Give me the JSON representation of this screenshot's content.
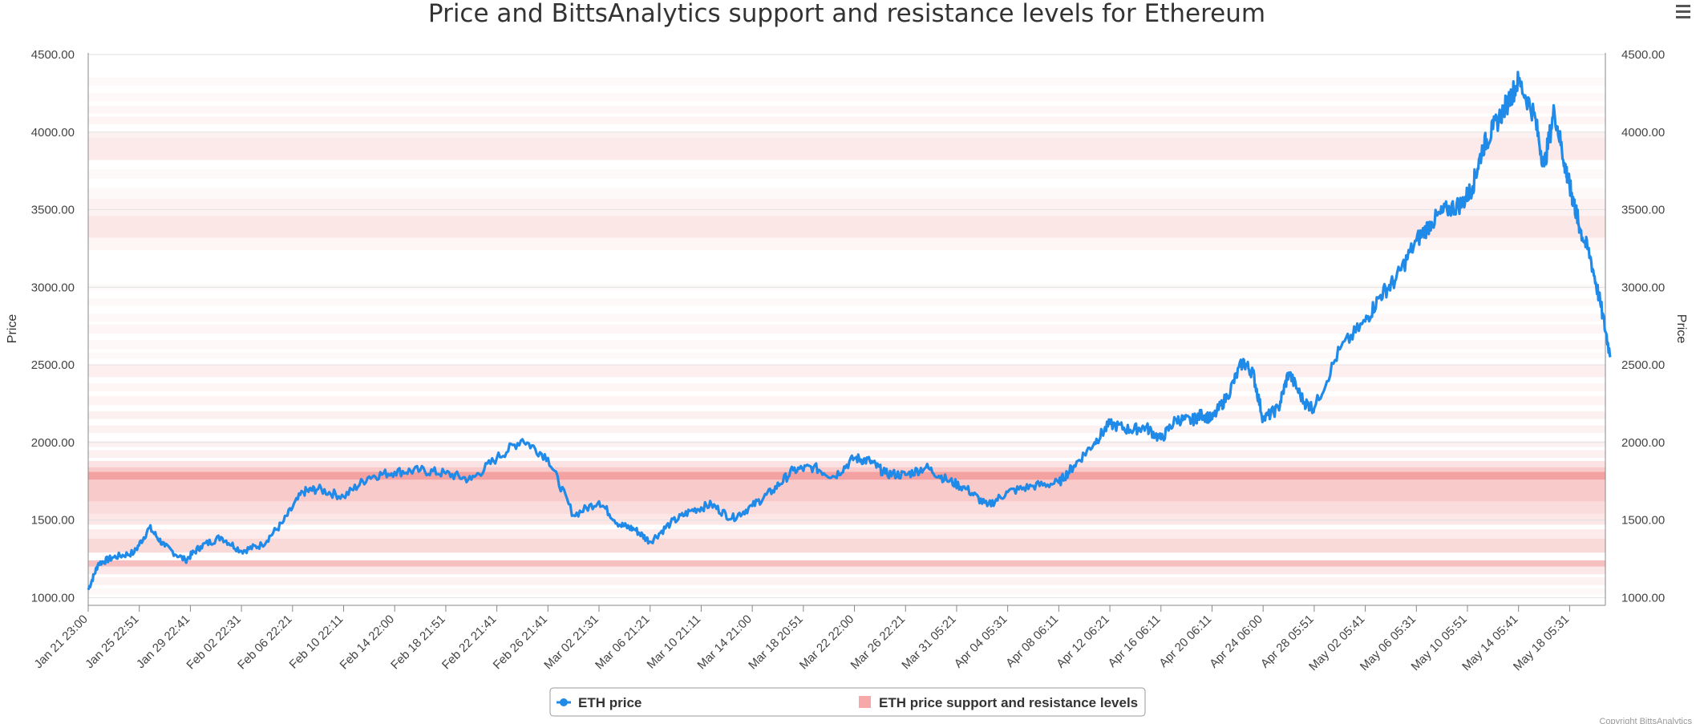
{
  "chart_data": {
    "type": "line",
    "title": "Price and BittsAnalytics support and resistance levels for Ethereum",
    "ylabel": "Price",
    "ylabel_right": "Price",
    "ylim": [
      950,
      4500
    ],
    "yticks": [
      "4500.00",
      "4000.00",
      "3500.00",
      "3000.00",
      "2500.00",
      "2000.00",
      "1500.00",
      "1000.00"
    ],
    "ytick_values": [
      4500,
      4000,
      3500,
      3000,
      2500,
      2000,
      1500,
      1000
    ],
    "xticks": [
      "Jan 21 23:00",
      "Jan 25 22:51",
      "Jan 29 22:41",
      "Feb 02 22:31",
      "Feb 06 22:21",
      "Feb 10 22:11",
      "Feb 14 22:00",
      "Feb 18 21:51",
      "Feb 22 21:41",
      "Feb 26 21:41",
      "Mar 02 21:31",
      "Mar 06 21:21",
      "Mar 10 21:11",
      "Mar 14 21:00",
      "Mar 18 20:51",
      "Mar 22 22:00",
      "Mar 26 22:21",
      "Mar 31 05:21",
      "Apr 04 05:31",
      "Apr 08 06:11",
      "Apr 12 06:21",
      "Apr 16 06:11",
      "Apr 20 06:11",
      "Apr 24 06:00",
      "Apr 28 05:51",
      "May 02 05:41",
      "May 06 05:31",
      "May 10 05:51",
      "May 14 05:41",
      "May 18 05:31"
    ],
    "grid": true,
    "legend_position": "bottom",
    "series": [
      {
        "name": "ETH price",
        "color": "#1f8ae8",
        "x_index": [
          0,
          0.2,
          0.5,
          0.9,
          1.2,
          1.5,
          1.9,
          2.2,
          2.6,
          3.0,
          3.4,
          3.8,
          4.2,
          4.5,
          5.0,
          5.5,
          6.0,
          6.5,
          7.0,
          7.5,
          8.0,
          8.5,
          9.0,
          9.5,
          10.0,
          10.4,
          10.7,
          11.0,
          11.4,
          11.8,
          12.2,
          12.6,
          13.0,
          13.4,
          13.8,
          14.2,
          14.6,
          15.0,
          15.3,
          15.6,
          16.0,
          16.4,
          16.8,
          17.2,
          17.6,
          18.0,
          18.5,
          19.0,
          19.3,
          19.7,
          20.0,
          20.4,
          20.7,
          21.0,
          21.3,
          21.6,
          21.8,
          22.0,
          22.3,
          22.6,
          22.8,
          23.0,
          23.3,
          23.5,
          23.8,
          24.0,
          24.5,
          25.0,
          25.3,
          25.6,
          26.0,
          26.3,
          26.6,
          26.9,
          27.1,
          27.3,
          27.5,
          27.8,
          28.0,
          28.3,
          28.5,
          28.7,
          28.9,
          29.0,
          29.1,
          29.2,
          29.4,
          29.6,
          29.8
        ],
        "values": [
          1050,
          1220,
          1260,
          1290,
          1450,
          1330,
          1240,
          1330,
          1390,
          1300,
          1340,
          1480,
          1680,
          1700,
          1650,
          1780,
          1810,
          1820,
          1800,
          1760,
          1900,
          2020,
          1900,
          1530,
          1620,
          1470,
          1440,
          1360,
          1480,
          1560,
          1600,
          1510,
          1590,
          1690,
          1820,
          1840,
          1780,
          1900,
          1880,
          1800,
          1790,
          1840,
          1760,
          1700,
          1590,
          1680,
          1720,
          1740,
          1850,
          2000,
          2120,
          2080,
          2100,
          2020,
          2150,
          2140,
          2180,
          2150,
          2300,
          2520,
          2450,
          2150,
          2220,
          2450,
          2260,
          2220,
          2600,
          2780,
          2950,
          3050,
          3300,
          3420,
          3500,
          3540,
          3650,
          3900,
          4020,
          4200,
          4330,
          4120,
          3780,
          4140,
          3800,
          3650,
          3520,
          3380,
          3200,
          2900,
          2550
        ]
      }
    ],
    "bands_series_name": "ETH price support and resistance levels",
    "bands_color": "#f08080",
    "bands": [
      [
        4300,
        4350,
        0.05
      ],
      [
        4200,
        4250,
        0.06
      ],
      [
        4120,
        4170,
        0.07
      ],
      [
        4050,
        4100,
        0.09
      ],
      [
        3960,
        4000,
        0.12
      ],
      [
        3820,
        3960,
        0.17
      ],
      [
        3700,
        3760,
        0.05
      ],
      [
        3570,
        3640,
        0.05
      ],
      [
        3460,
        3570,
        0.11
      ],
      [
        3320,
        3460,
        0.19
      ],
      [
        3240,
        3320,
        0.08
      ],
      [
        2980,
        3020,
        0.04
      ],
      [
        2880,
        2930,
        0.05
      ],
      [
        2780,
        2830,
        0.06
      ],
      [
        2700,
        2760,
        0.07
      ],
      [
        2600,
        2660,
        0.06
      ],
      [
        2540,
        2580,
        0.05
      ],
      [
        2420,
        2500,
        0.13
      ],
      [
        2330,
        2380,
        0.08
      ],
      [
        2240,
        2300,
        0.09
      ],
      [
        2150,
        2200,
        0.12
      ],
      [
        2060,
        2110,
        0.1
      ],
      [
        1970,
        2010,
        0.1
      ],
      [
        1900,
        1950,
        0.12
      ],
      [
        1840,
        1880,
        0.22
      ],
      [
        1620,
        1840,
        0.42
      ],
      [
        1760,
        1810,
        0.55
      ],
      [
        1540,
        1620,
        0.28
      ],
      [
        1470,
        1540,
        0.2
      ],
      [
        1380,
        1440,
        0.16
      ],
      [
        1290,
        1380,
        0.3
      ],
      [
        1200,
        1240,
        0.5
      ],
      [
        1150,
        1200,
        0.18
      ],
      [
        1080,
        1130,
        0.1
      ],
      [
        1020,
        1060,
        0.06
      ]
    ]
  },
  "legend": {
    "line_label": "ETH price",
    "band_label": "ETH price support and resistance levels"
  },
  "credits": {
    "text": "Copyright BittsAnalytics"
  },
  "menu": {
    "icon": "hamburger-menu-icon"
  }
}
